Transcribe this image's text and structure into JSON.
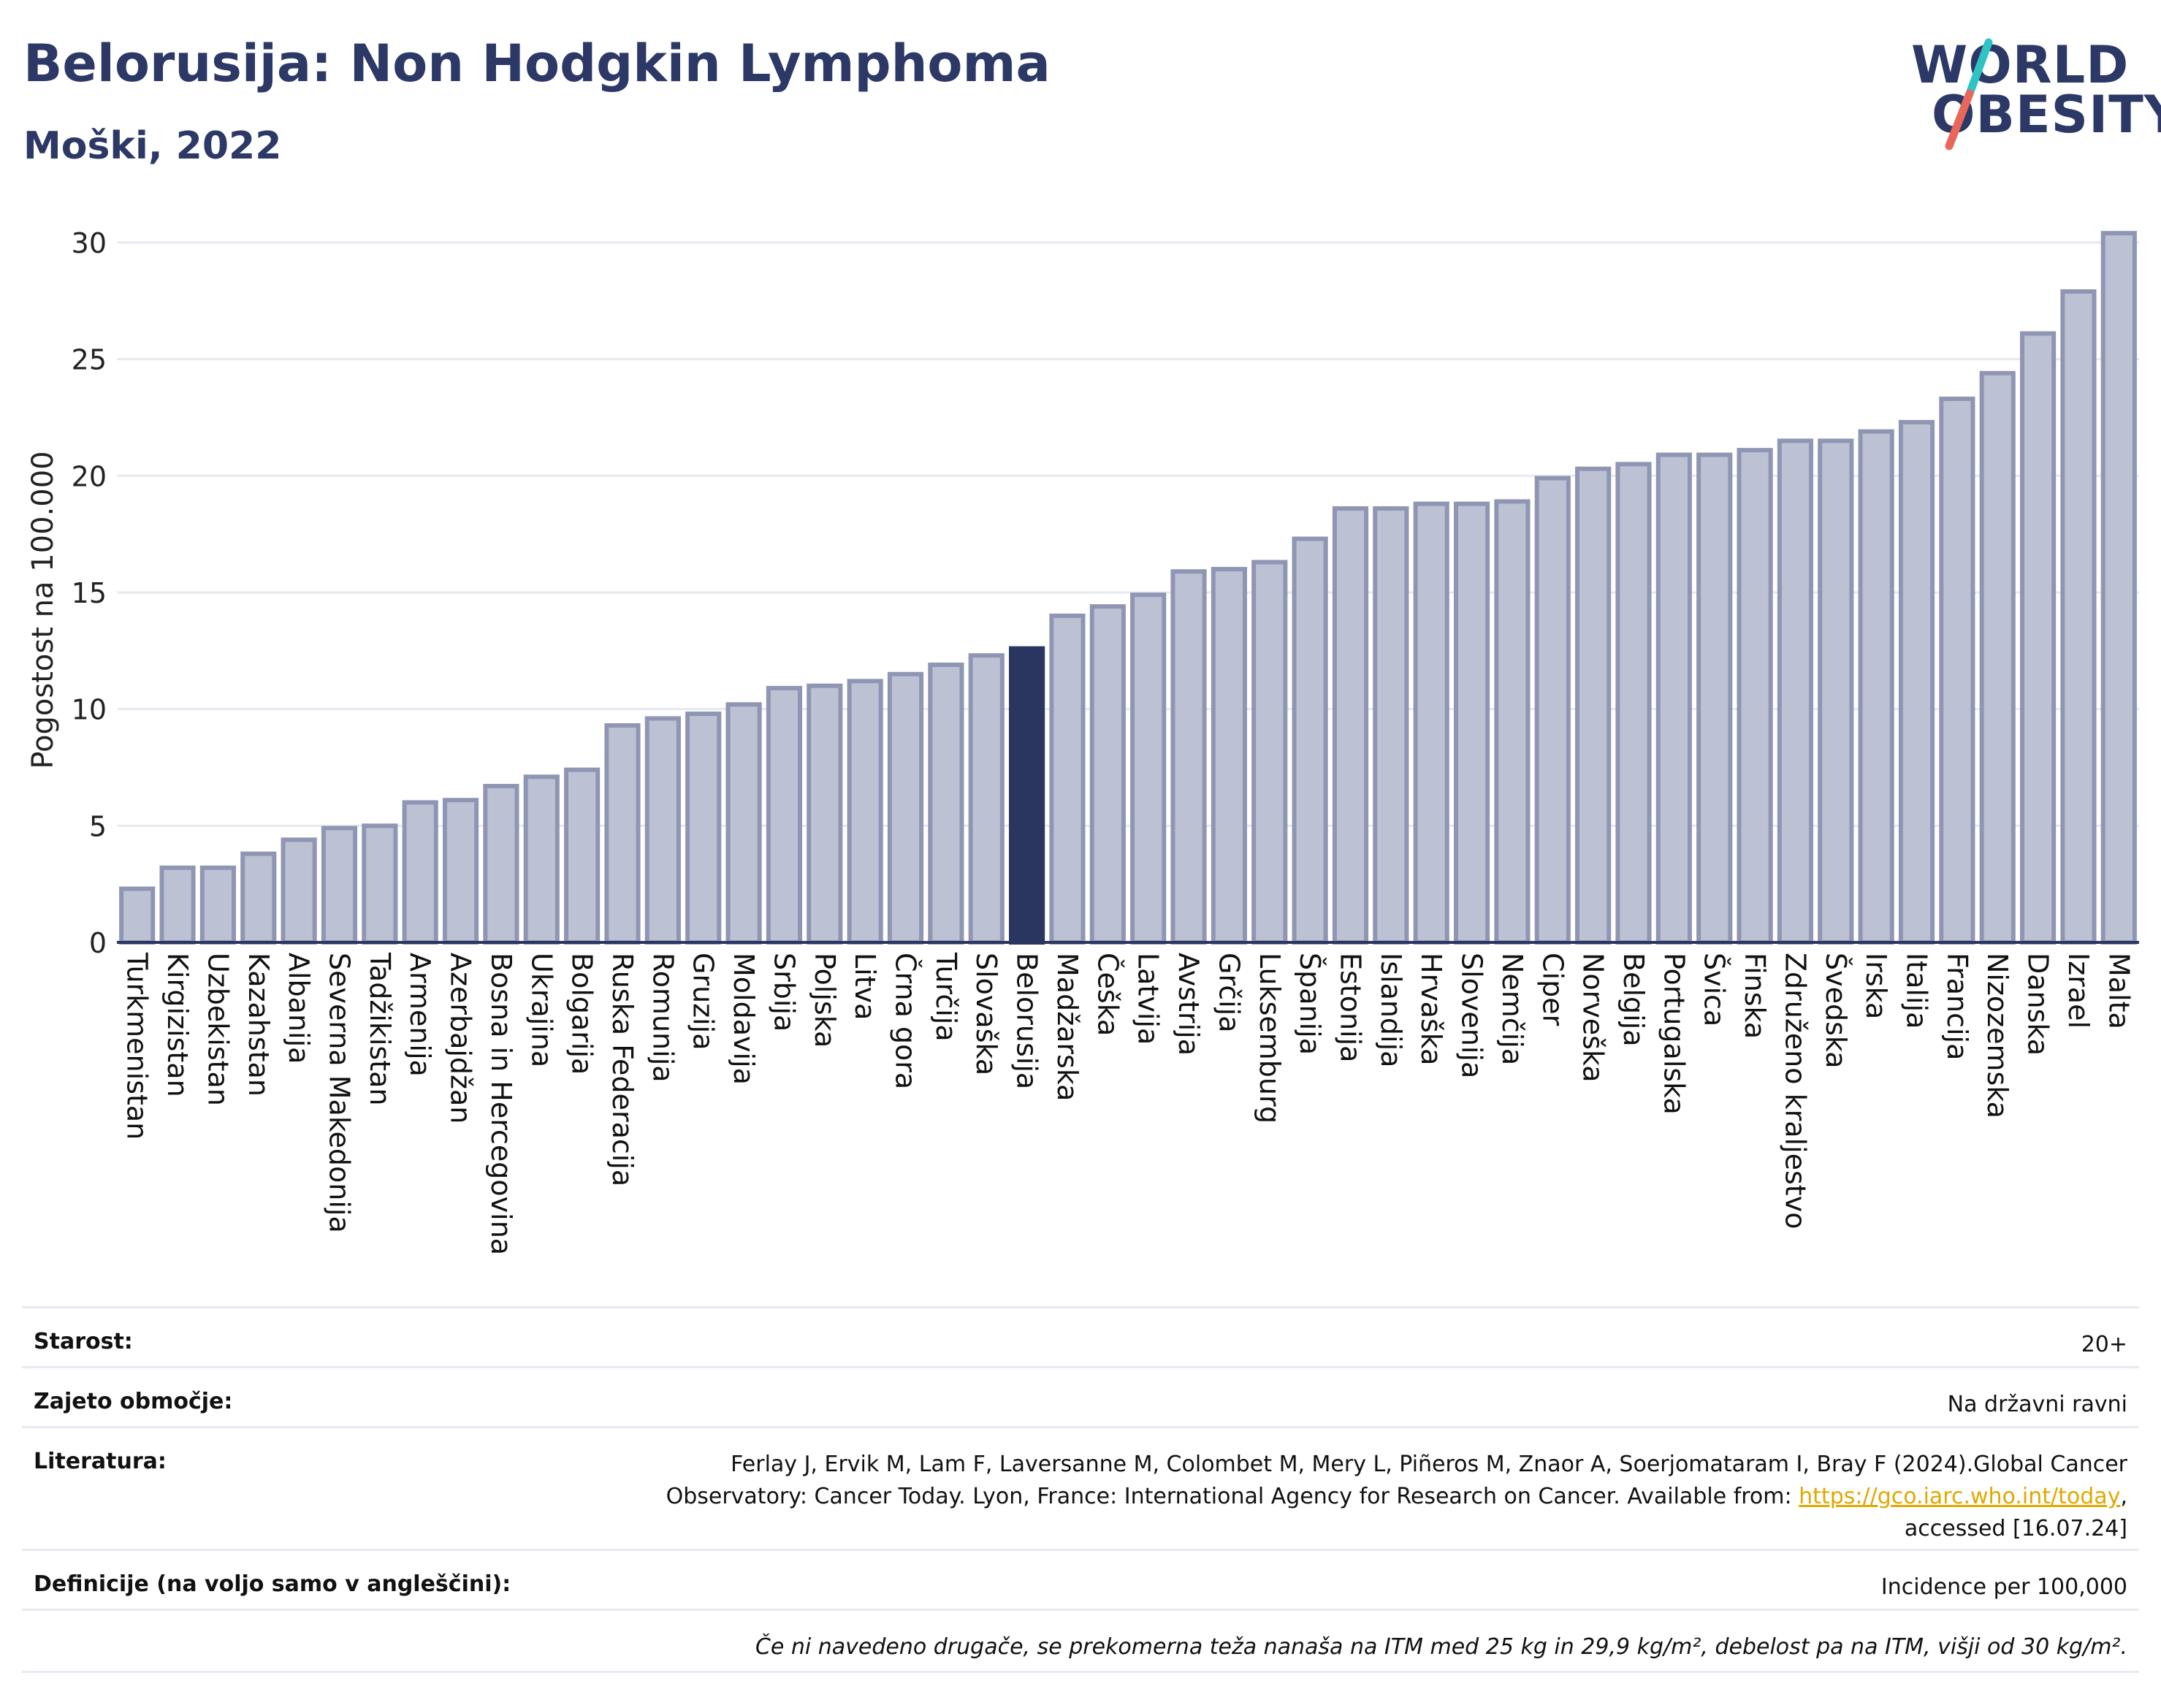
{
  "header": {
    "title": "Belorusija: Non Hodgkin Lymphoma",
    "subtitle": "Moški, 2022"
  },
  "logo": {
    "line1": "WORLD",
    "line2": "OBESITY",
    "colors": {
      "text": "#2c3866",
      "slash_top": "#2ec4c4",
      "slash_bottom": "#e8675a"
    }
  },
  "colors": {
    "bar": "#bcc1d3",
    "bar_stroke": "#8f96b4",
    "highlight": "#2a3560",
    "grid": "#e6e9f0",
    "axis": "#2a3560"
  },
  "chart_data": {
    "type": "bar",
    "ylabel": "Pogostost na 100.000",
    "ylim": [
      0,
      31
    ],
    "yticks": [
      0,
      5,
      10,
      15,
      20,
      25,
      30
    ],
    "grid": true,
    "highlight": "Belorusija",
    "categories": [
      "Turkmenistan",
      "Kirgizistan",
      "Uzbekistan",
      "Kazahstan",
      "Albanija",
      "Severna Makedonija",
      "Tadžikistan",
      "Armenija",
      "Azerbajdžan",
      "Bosna in Hercegovina",
      "Ukrajina",
      "Bolgarija",
      "Ruska Federacija",
      "Romunija",
      "Gruzija",
      "Moldavija",
      "Srbija",
      "Poljska",
      "Litva",
      "Črna gora",
      "Turčija",
      "Slovaška",
      "Belorusija",
      "Madžarska",
      "Češka",
      "Latvija",
      "Avstrija",
      "Grčija",
      "Luksemburg",
      "Španija",
      "Estonija",
      "Islandija",
      "Hrvaška",
      "Slovenija",
      "Nemčija",
      "Ciper",
      "Norveška",
      "Belgija",
      "Portugalska",
      "Švica",
      "Finska",
      "Združeno kraljestvo",
      "Švedska",
      "Irska",
      "Italija",
      "Francija",
      "Nizozemska",
      "Danska",
      "Izrael",
      "Malta"
    ],
    "values": [
      2.3,
      3.2,
      3.2,
      3.8,
      4.4,
      4.9,
      5.0,
      6.0,
      6.1,
      6.7,
      7.1,
      7.4,
      9.3,
      9.6,
      9.8,
      10.2,
      10.9,
      11.0,
      11.2,
      11.5,
      11.9,
      12.3,
      12.6,
      14.0,
      14.4,
      14.9,
      15.9,
      16.0,
      16.3,
      17.3,
      18.6,
      18.6,
      18.8,
      18.8,
      18.9,
      19.9,
      20.3,
      20.5,
      20.9,
      20.9,
      21.1,
      21.5,
      21.5,
      21.9,
      22.3,
      23.3,
      24.4,
      26.1,
      27.9,
      30.4
    ]
  },
  "info": {
    "age_label": "Starost:",
    "age_value": "20+",
    "area_label": "Zajeto območje:",
    "area_value": "Na državni ravni",
    "ref_label": "Literatura:",
    "ref_line1": "Ferlay J, Ervik M, Lam F, Laversanne M, Colombet M, Mery L, Piñeros M, Znaor A, Soerjomataram I, Bray F (2024).Global Cancer",
    "ref_line2_pre": "Observatory: Cancer Today. Lyon, France: International Agency for Research on Cancer. Available from: ",
    "ref_link": "https://gco.iarc.who.int/today",
    "ref_line2_post": ",",
    "ref_line3": "accessed [16.07.24]",
    "def_label": "Definicije (na voljo samo v angleščini):",
    "def_value": "Incidence per 100,000",
    "footnote": "Če ni navedeno drugače, se prekomerna teža nanaša na ITM med 25 kg in 29,9 kg/m², debelost pa na ITM, višji od 30 kg/m²."
  }
}
